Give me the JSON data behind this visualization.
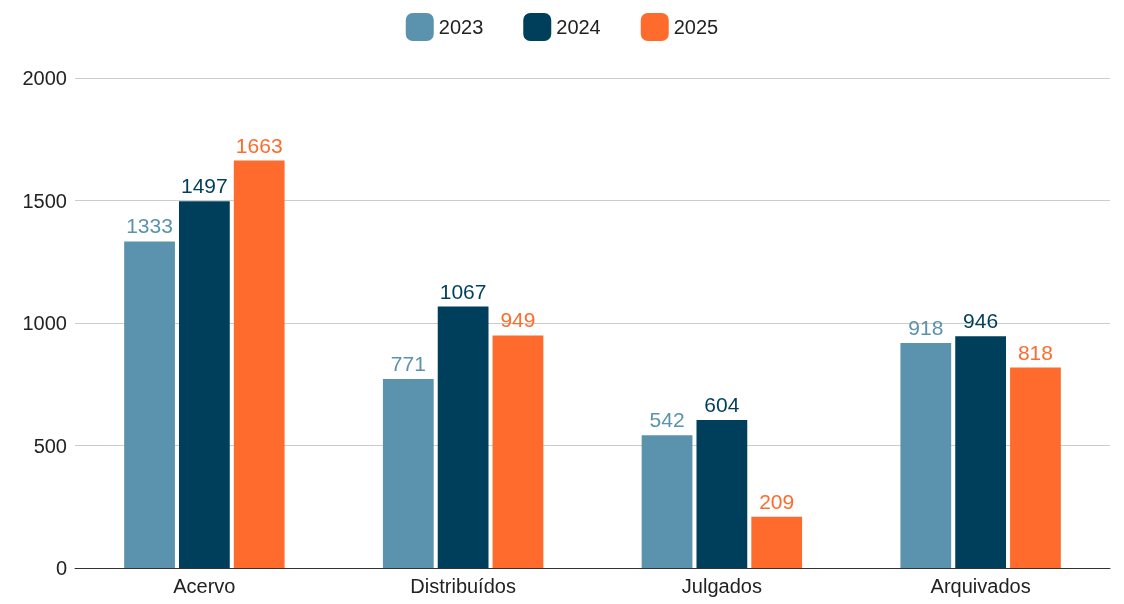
{
  "chart_data": {
    "type": "bar",
    "categories": [
      "Acervo",
      "Distribuídos",
      "Julgados",
      "Arquivados"
    ],
    "series": [
      {
        "name": "2023",
        "color": "#5b92ad",
        "values": [
          1333,
          771,
          542,
          918
        ]
      },
      {
        "name": "2024",
        "color": "#003f5c",
        "values": [
          1497,
          1067,
          604,
          946
        ]
      },
      {
        "name": "2025",
        "color": "#ff6b2c",
        "values": [
          1663,
          949,
          209,
          818
        ]
      }
    ],
    "ylim": [
      0,
      2000
    ],
    "yticks": [
      0,
      500,
      1000,
      1500,
      2000
    ],
    "grid": "y",
    "legend": "top",
    "data_labels": true
  }
}
